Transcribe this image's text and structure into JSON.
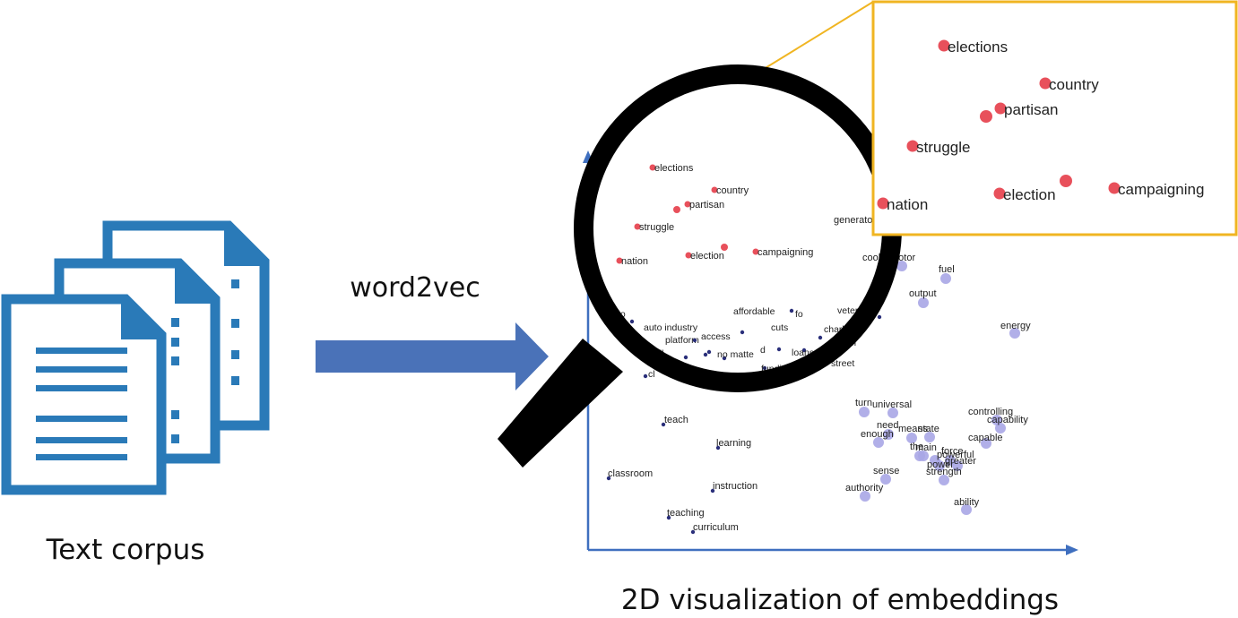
{
  "labels": {
    "corpus": "Text corpus",
    "method": "word2vec",
    "visualization": "2D visualization of embeddings"
  },
  "colors": {
    "doc_blue": "#2a7ab8",
    "arrow_blue": "#4a72b8",
    "axis_blue": "#3f6fbf",
    "zoom_border": "#f0b522",
    "red_point": "#e8505b",
    "lilac_point": "#a9a6e6",
    "navy_point": "#2a2f7a"
  },
  "clusters": {
    "political": [
      {
        "word": "elections"
      },
      {
        "word": "country"
      },
      {
        "word": "partisan"
      },
      {
        "word": "struggle"
      },
      {
        "word": "nation"
      },
      {
        "word": "election"
      },
      {
        "word": "campaigning"
      }
    ],
    "energy_power": [
      {
        "word": "generato"
      },
      {
        "word": "cooling"
      },
      {
        "word": "motor"
      },
      {
        "word": "fuel"
      },
      {
        "word": "output"
      },
      {
        "word": "energy"
      },
      {
        "word": "turn"
      },
      {
        "word": "universal"
      },
      {
        "word": "need"
      },
      {
        "word": "means"
      },
      {
        "word": "state"
      },
      {
        "word": "enough"
      },
      {
        "word": "controlling"
      },
      {
        "word": "capability"
      },
      {
        "word": "capable"
      },
      {
        "word": "main"
      },
      {
        "word": "force"
      },
      {
        "word": "powerful"
      },
      {
        "word": "greater"
      },
      {
        "word": "power"
      },
      {
        "word": "strength"
      },
      {
        "word": "sense"
      },
      {
        "word": "authority"
      },
      {
        "word": "ability"
      },
      {
        "word": "the"
      }
    ],
    "policy": [
      {
        "word": "affordable"
      },
      {
        "word": "auto industry"
      },
      {
        "word": "platform"
      },
      {
        "word": "access"
      },
      {
        "word": "cuts"
      },
      {
        "word": "no matte"
      },
      {
        "word": "veterans"
      },
      {
        "word": "charlotte"
      },
      {
        "word": "israel"
      },
      {
        "word": "loans"
      },
      {
        "word": "street"
      },
      {
        "word": "funding"
      },
      {
        "word": "to"
      },
      {
        "word": "fo"
      },
      {
        "word": "ell"
      },
      {
        "word": "cl"
      },
      {
        "word": "d"
      }
    ],
    "education": [
      {
        "word": "teach"
      },
      {
        "word": "learning"
      },
      {
        "word": "classroom"
      },
      {
        "word": "instruction"
      },
      {
        "word": "teaching"
      },
      {
        "word": "curriculum"
      }
    ]
  }
}
